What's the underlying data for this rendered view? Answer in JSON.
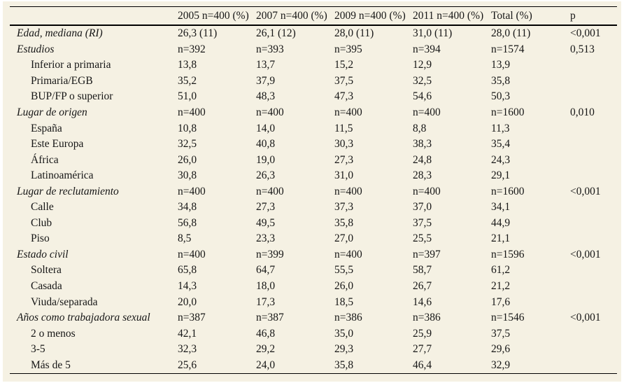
{
  "page": {
    "background_color": "#f5f1e3",
    "rule_color": "#000000",
    "text_color": "#161616"
  },
  "table": {
    "columns": [
      "2005 n=400 (%)",
      "2007 n=400 (%)",
      "2009 n=400 (%)",
      "2011 n=400 (%)",
      "Total (%)",
      "p"
    ],
    "rows": [
      {
        "label": "Edad, mediana (RI)",
        "indent": false,
        "italic": true,
        "cells": [
          "26,3 (11)",
          "26,1 (12)",
          "28,0 (11)",
          "31,0 (11)",
          "28,0 (11)",
          "<0,001"
        ]
      },
      {
        "label": "Estudios",
        "indent": false,
        "italic": true,
        "cells": [
          "n=392",
          "n=393",
          "n=395",
          "n=394",
          "n=1574",
          "0,513"
        ]
      },
      {
        "label": "Inferior a primaria",
        "indent": true,
        "italic": false,
        "cells": [
          "13,8",
          "13,7",
          "15,2",
          "12,9",
          "13,9",
          ""
        ]
      },
      {
        "label": "Primaria/EGB",
        "indent": true,
        "italic": false,
        "cells": [
          "35,2",
          "37,9",
          "37,5",
          "32,5",
          "35,8",
          ""
        ]
      },
      {
        "label": "BUP/FP o superior",
        "indent": true,
        "italic": false,
        "cells": [
          "51,0",
          "48,3",
          "47,3",
          "54,6",
          "50,3",
          ""
        ]
      },
      {
        "label": "Lugar de origen",
        "indent": false,
        "italic": true,
        "cells": [
          "n=400",
          "n=400",
          "n=400",
          "n=400",
          "n=1600",
          "0,010"
        ]
      },
      {
        "label": "España",
        "indent": true,
        "italic": false,
        "cells": [
          "10,8",
          "14,0",
          "11,5",
          "8,8",
          "11,3",
          ""
        ]
      },
      {
        "label": "Este Europa",
        "indent": true,
        "italic": false,
        "cells": [
          "32,5",
          "40,8",
          "30,3",
          "38,3",
          "35,4",
          ""
        ]
      },
      {
        "label": "África",
        "indent": true,
        "italic": false,
        "cells": [
          "26,0",
          "19,0",
          "27,3",
          "24,8",
          "24,3",
          ""
        ]
      },
      {
        "label": "Latinoamérica",
        "indent": true,
        "italic": false,
        "cells": [
          "30,8",
          "26,3",
          "31,0",
          "28,3",
          "29,1",
          ""
        ]
      },
      {
        "label": "Lugar de reclutamiento",
        "indent": false,
        "italic": true,
        "cells": [
          "n=400",
          "n=400",
          "n=400",
          "n=400",
          "n=1600",
          "<0,001"
        ]
      },
      {
        "label": "Calle",
        "indent": true,
        "italic": false,
        "cells": [
          "34,8",
          "27,3",
          "37,3",
          "37,0",
          "34,1",
          ""
        ]
      },
      {
        "label": "Club",
        "indent": true,
        "italic": false,
        "cells": [
          "56,8",
          "49,5",
          "35,8",
          "37,5",
          "44,9",
          ""
        ]
      },
      {
        "label": "Piso",
        "indent": true,
        "italic": false,
        "cells": [
          "8,5",
          "23,3",
          "27,0",
          "25,5",
          "21,1",
          ""
        ]
      },
      {
        "label": "Estado civil",
        "indent": false,
        "italic": true,
        "cells": [
          "n=400",
          "n=399",
          "n=400",
          "n=397",
          "n=1596",
          "<0,001"
        ]
      },
      {
        "label": "Soltera",
        "indent": true,
        "italic": false,
        "cells": [
          "65,8",
          "64,7",
          "55,5",
          "58,7",
          "61,2",
          ""
        ]
      },
      {
        "label": "Casada",
        "indent": true,
        "italic": false,
        "cells": [
          "14,3",
          "18,0",
          "26,0",
          "26,7",
          "21,2",
          ""
        ]
      },
      {
        "label": "Viuda/separada",
        "indent": true,
        "italic": false,
        "cells": [
          "20,0",
          "17,3",
          "18,5",
          "14,6",
          "17,6",
          ""
        ]
      },
      {
        "label": "Años como trabajadora sexual",
        "indent": false,
        "italic": true,
        "cells": [
          "n=387",
          "n=387",
          "n=386",
          "n=386",
          "n=1546",
          "<0,001"
        ]
      },
      {
        "label": "2 o menos",
        "indent": true,
        "italic": false,
        "cells": [
          "42,1",
          "46,8",
          "35,0",
          "25,9",
          "37,5",
          ""
        ]
      },
      {
        "label": "3-5",
        "indent": true,
        "italic": false,
        "cells": [
          "32,3",
          "29,2",
          "29,3",
          "27,7",
          "29,6",
          ""
        ]
      },
      {
        "label": "Más de 5",
        "indent": true,
        "italic": false,
        "cells": [
          "25,6",
          "24,0",
          "35,8",
          "46,4",
          "32,9",
          ""
        ]
      }
    ]
  }
}
